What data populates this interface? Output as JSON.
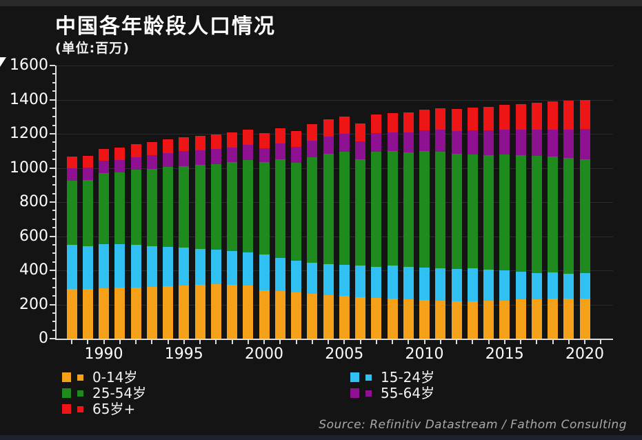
{
  "chart_data": {
    "type": "bar",
    "stacked": true,
    "title": "中国各年龄段人口情况",
    "subtitle": "(单位:百万)",
    "source": "Source: Refinitiv Datastream / Fathom Consulting",
    "x": [
      1988,
      1989,
      1990,
      1991,
      1992,
      1993,
      1994,
      1995,
      1996,
      1997,
      1998,
      1999,
      2000,
      2001,
      2002,
      2003,
      2004,
      2005,
      2006,
      2007,
      2008,
      2009,
      2010,
      2011,
      2012,
      2013,
      2014,
      2015,
      2016,
      2017,
      2018,
      2019,
      2020
    ],
    "x_tick_labels": [
      "1990",
      "1995",
      "2000",
      "2005",
      "2010",
      "2015",
      "2020"
    ],
    "ylim": [
      0,
      1600
    ],
    "y_ticks": [
      0,
      200,
      400,
      600,
      800,
      1000,
      1200,
      1400,
      1600
    ],
    "grid": "horizontal-faint",
    "legend_position": "bottom",
    "series": [
      {
        "name": "0-14岁",
        "color": "#F4A018",
        "values": [
          290,
          291,
          294,
          297,
          299,
          303,
          307,
          310,
          316,
          320,
          316,
          310,
          281,
          277,
          270,
          263,
          256,
          249,
          243,
          238,
          233,
          229,
          225,
          222,
          220,
          220,
          224,
          224,
          229,
          232,
          233,
          233,
          233
        ]
      },
      {
        "name": "15-24岁",
        "color": "#30C1F2",
        "values": [
          259,
          252,
          259,
          256,
          250,
          240,
          232,
          225,
          210,
          201,
          196,
          195,
          211,
          195,
          188,
          182,
          182,
          185,
          184,
          182,
          195,
          193,
          191,
          192,
          190,
          192,
          180,
          174,
          163,
          153,
          156,
          148,
          152
        ]
      },
      {
        "name": "25-54岁",
        "color": "#1F8B1F",
        "values": [
          376,
          386,
          415,
          420,
          441,
          452,
          466,
          475,
          491,
          503,
          523,
          542,
          541,
          580,
          571,
          617,
          645,
          661,
          623,
          676,
          669,
          670,
          682,
          681,
          672,
          668,
          671,
          679,
          682,
          685,
          676,
          677,
          666
        ]
      },
      {
        "name": "55-64岁",
        "color": "#8E1191",
        "values": [
          74,
          75,
          74,
          74,
          74,
          80,
          81,
          87,
          85,
          86,
          85,
          87,
          83,
          90,
          93,
          97,
          100,
          103,
          105,
          110,
          113,
          118,
          124,
          130,
          136,
          140,
          145,
          148,
          152,
          155,
          159,
          168,
          178
        ]
      },
      {
        "name": "65岁+",
        "color": "#ED1515",
        "values": [
          66,
          68,
          70,
          72,
          75,
          77,
          80,
          82,
          84,
          86,
          89,
          92,
          88,
          91,
          94,
          97,
          100,
          103,
          106,
          109,
          112,
          115,
          119,
          123,
          127,
          132,
          137,
          143,
          149,
          156,
          164,
          169,
          170
        ]
      }
    ],
    "legend": {
      "columns": [
        [
          "0-14岁",
          "25-54岁",
          "65岁+"
        ],
        [
          "15-24岁",
          "55-64岁"
        ]
      ]
    }
  }
}
